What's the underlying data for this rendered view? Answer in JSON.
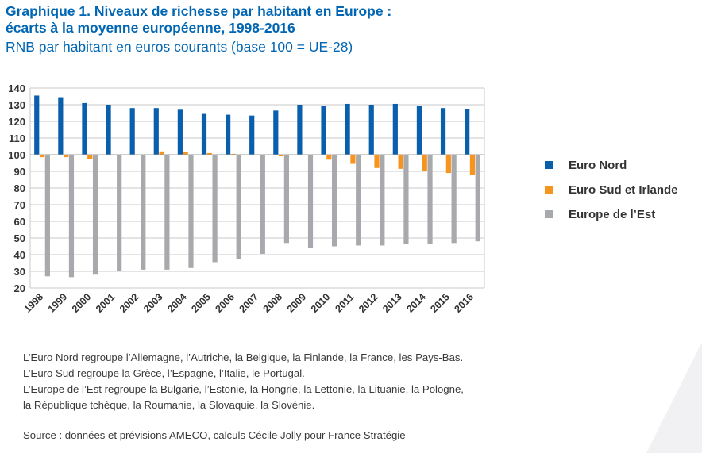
{
  "header": {
    "title_line1": "Graphique 1. Niveaux de richesse par habitant en Europe :",
    "title_line2": "écarts à la moyenne européenne, 1998-2016",
    "subtitle": "RNB par habitant en euros courants (base 100 = UE-28)"
  },
  "legend": {
    "items": [
      {
        "label": "Euro Nord",
        "color": "#0a5fad"
      },
      {
        "label": "Euro Sud et Irlande",
        "color": "#f7941d"
      },
      {
        "label": "Europe de l’Est",
        "color": "#a7a9ac"
      }
    ]
  },
  "notes": {
    "line1": "L’Euro Nord regroupe l’Allemagne, l’Autriche, la Belgique, la Finlande, la France, les Pays-Bas.",
    "line2": "L’Euro Sud regroupe la Grèce, l’Espagne, l’Italie, le Portugal.",
    "line3": "L’Europe de l’Est regroupe la Bulgarie, l’Estonie, la Hongrie, la Lettonie, la Lituanie, la Pologne,",
    "line4": "la République tchèque, la Roumanie, la Slovaquie, la Slovénie."
  },
  "source": "Source : données et prévisions AMECO, calculs Cécile Jolly pour France Stratégie",
  "chart_data": {
    "type": "bar",
    "title": "Graphique 1. Niveaux de richesse par habitant en Europe : écarts à la moyenne européenne, 1998-2016",
    "subtitle": "RNB par habitant en euros courants (base 100 = UE-28)",
    "xlabel": "",
    "ylabel": "",
    "baseline": 100,
    "ylim": [
      20,
      140
    ],
    "yticks": [
      20,
      30,
      40,
      50,
      60,
      70,
      80,
      90,
      100,
      110,
      120,
      130,
      140
    ],
    "grid": true,
    "legend_position": "right",
    "categories": [
      "1998",
      "1999",
      "2000",
      "2001",
      "2002",
      "2003",
      "2004",
      "2005",
      "2006",
      "2007",
      "2008",
      "2009",
      "2010",
      "2011",
      "2012",
      "2013",
      "2014",
      "2015",
      "2016"
    ],
    "series": [
      {
        "name": "Euro Nord",
        "color": "#0a5fad",
        "values": [
          135.5,
          134.5,
          131,
          130,
          128,
          128,
          127,
          124.5,
          124,
          123.5,
          126.5,
          130,
          129.5,
          130.5,
          130,
          130.5,
          129.5,
          128,
          127.5
        ]
      },
      {
        "name": "Euro Sud et Irlande",
        "color": "#f7941d",
        "values": [
          98.5,
          98.5,
          97.5,
          99.5,
          100,
          102,
          101.5,
          101,
          100.5,
          99.5,
          99,
          99.5,
          97,
          94.5,
          92,
          91.5,
          90,
          89,
          88
        ]
      },
      {
        "name": "Europe de l’Est",
        "color": "#a7a9ac",
        "values": [
          27,
          26.5,
          28,
          30,
          31,
          31,
          32,
          35.5,
          37.5,
          40.5,
          47,
          44,
          45,
          45.5,
          45.5,
          46.5,
          46.5,
          47,
          48
        ]
      }
    ]
  }
}
